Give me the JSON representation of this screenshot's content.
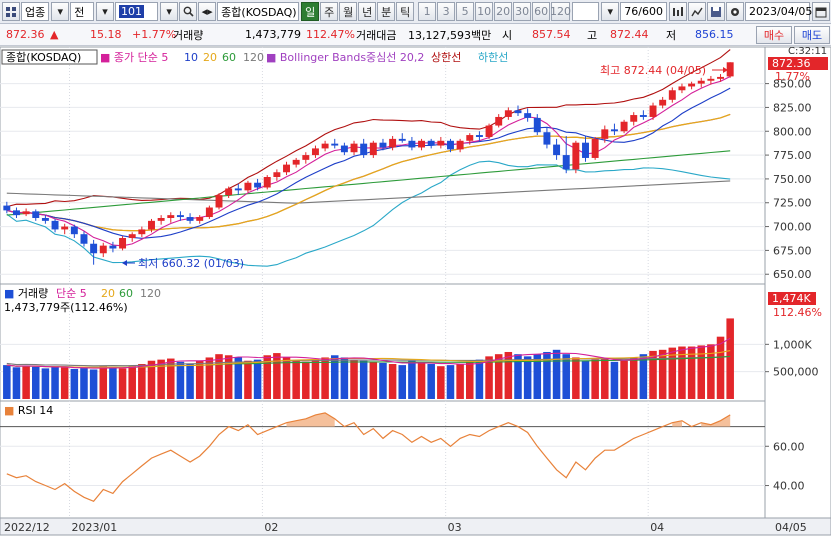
{
  "toolbar": {
    "market": "업종",
    "period": "전",
    "code": "101",
    "index_name": "종합(KOSDAQ)",
    "timeframes": [
      "일",
      "주",
      "월",
      "년",
      "분",
      "틱"
    ],
    "active_timeframe": "일",
    "intervals": [
      "1",
      "3",
      "5",
      "10",
      "20",
      "30",
      "60",
      "120"
    ],
    "count": "76/600",
    "date": "2023/04/05"
  },
  "pricebar": {
    "price": "872.36",
    "arrow": "▲",
    "change": "15.18",
    "change_pct": "+1.77%",
    "volume_label": "거래량",
    "volume": "1,473,779",
    "volume_pct": "112.47%",
    "amount_label": "거래대금",
    "amount": "13,127,593백만",
    "open_label": "시",
    "open": "857.54",
    "high_label": "고",
    "high": "872.44",
    "low_label": "저",
    "low": "856.15",
    "buy_label": "매수",
    "sell_label": "매도"
  },
  "legend": {
    "title": "종합(KOSDAQ)",
    "ma_label": "종가 단순",
    "ma_periods": [
      "5",
      "10",
      "20",
      "60",
      "120"
    ],
    "bb_label": "Bollinger Bands중심선 20,2",
    "bb_upper": "상한선",
    "bb_lower": "하한선",
    "max_text": "최고 872.44 (04/05)",
    "min_text": "최저 660.32 (01/03)",
    "last_price": "872.36",
    "last_pct": "1.77%",
    "top_clock": "C:32:11"
  },
  "volume_panel": {
    "title": "거래량",
    "ma_label": "단순",
    "ma_periods": [
      "5",
      "20",
      "60",
      "120"
    ],
    "info": "1,473,779주(112.46%)",
    "last_label": "1,474K",
    "last_pct": "112.46%"
  },
  "rsi_panel": {
    "title": "RSI 14"
  },
  "price_axis": [
    "872.36",
    "850.00",
    "825.00",
    "800.00",
    "775.00",
    "750.00",
    "725.00",
    "700.00",
    "675.00",
    "650.00"
  ],
  "volume_axis": [
    "1,000K",
    "500,000"
  ],
  "rsi_axis": [
    "60.00",
    "40.00"
  ],
  "date_axis": [
    "2022/12",
    "2023/01",
    "02",
    "03",
    "04",
    "04/05"
  ],
  "colors": {
    "up": "#e3262a",
    "down": "#1e4fd6",
    "ma5": "#d4209a",
    "ma10": "#1e3fc8",
    "ma20": "#e5a81b",
    "ma60": "#2d9b3a",
    "ma120": "#7a7a7a",
    "bb_mid": "#a040c0",
    "bb_upper": "#b01010",
    "bb_lower": "#2aa8c8"
  },
  "chart_data": {
    "type": "candlestick",
    "title": "종합(KOSDAQ)",
    "ylim": [
      645,
      880
    ],
    "candles": [
      [
        722,
        726,
        714,
        717
      ],
      [
        717,
        720,
        709,
        712
      ],
      [
        713,
        719,
        711,
        716
      ],
      [
        716,
        718,
        706,
        709
      ],
      [
        709,
        712,
        703,
        706
      ],
      [
        706,
        708,
        694,
        697
      ],
      [
        697,
        703,
        692,
        700
      ],
      [
        700,
        702,
        688,
        692
      ],
      [
        692,
        695,
        679,
        682
      ],
      [
        682,
        686,
        660,
        672
      ],
      [
        672,
        683,
        668,
        680
      ],
      [
        680,
        684,
        673,
        677
      ],
      [
        677,
        690,
        675,
        688
      ],
      [
        688,
        694,
        684,
        692
      ],
      [
        692,
        700,
        689,
        697
      ],
      [
        697,
        708,
        694,
        706
      ],
      [
        706,
        712,
        702,
        709
      ],
      [
        709,
        715,
        704,
        712
      ],
      [
        712,
        716,
        706,
        710
      ],
      [
        710,
        714,
        703,
        706
      ],
      [
        706,
        712,
        703,
        710
      ],
      [
        710,
        722,
        708,
        720
      ],
      [
        720,
        735,
        718,
        733
      ],
      [
        733,
        742,
        730,
        740
      ],
      [
        740,
        745,
        733,
        738
      ],
      [
        738,
        748,
        736,
        746
      ],
      [
        746,
        750,
        738,
        741
      ],
      [
        741,
        754,
        739,
        752
      ],
      [
        752,
        760,
        748,
        757
      ],
      [
        757,
        768,
        754,
        765
      ],
      [
        765,
        772,
        762,
        770
      ],
      [
        770,
        778,
        766,
        775
      ],
      [
        775,
        785,
        772,
        782
      ],
      [
        782,
        790,
        779,
        787
      ],
      [
        787,
        792,
        782,
        785
      ],
      [
        785,
        788,
        775,
        778
      ],
      [
        778,
        790,
        775,
        787
      ],
      [
        787,
        792,
        772,
        775
      ],
      [
        775,
        790,
        772,
        788
      ],
      [
        788,
        792,
        780,
        783
      ],
      [
        783,
        795,
        780,
        792
      ],
      [
        792,
        798,
        788,
        790
      ],
      [
        790,
        794,
        780,
        783
      ],
      [
        783,
        792,
        780,
        790
      ],
      [
        790,
        792,
        782,
        785
      ],
      [
        785,
        794,
        782,
        790
      ],
      [
        790,
        792,
        778,
        781
      ],
      [
        781,
        792,
        778,
        790
      ],
      [
        790,
        798,
        786,
        796
      ],
      [
        796,
        800,
        790,
        794
      ],
      [
        794,
        808,
        792,
        806
      ],
      [
        806,
        818,
        804,
        815
      ],
      [
        815,
        825,
        812,
        822
      ],
      [
        822,
        827,
        816,
        819
      ],
      [
        819,
        824,
        810,
        814
      ],
      [
        814,
        818,
        796,
        799
      ],
      [
        799,
        804,
        782,
        786
      ],
      [
        786,
        792,
        770,
        775
      ],
      [
        775,
        795,
        756,
        760
      ],
      [
        760,
        790,
        756,
        788
      ],
      [
        788,
        795,
        768,
        772
      ],
      [
        772,
        794,
        770,
        792
      ],
      [
        792,
        806,
        788,
        802
      ],
      [
        802,
        808,
        796,
        800
      ],
      [
        800,
        812,
        798,
        810
      ],
      [
        810,
        820,
        806,
        817
      ],
      [
        817,
        822,
        812,
        815
      ],
      [
        815,
        830,
        812,
        827
      ],
      [
        827,
        836,
        824,
        833
      ],
      [
        833,
        846,
        830,
        843
      ],
      [
        843,
        850,
        840,
        847
      ],
      [
        847,
        852,
        844,
        850
      ],
      [
        850,
        856,
        846,
        853
      ],
      [
        853,
        858,
        849,
        855
      ],
      [
        855,
        860,
        852,
        857
      ],
      [
        857.54,
        872.44,
        856.15,
        872.36
      ]
    ],
    "volume": [
      620,
      580,
      610,
      590,
      560,
      600,
      575,
      550,
      565,
      540,
      600,
      590,
      560,
      600,
      640,
      700,
      720,
      740,
      680,
      650,
      700,
      760,
      820,
      800,
      760,
      700,
      720,
      800,
      840,
      760,
      700,
      680,
      720,
      760,
      800,
      760,
      720,
      700,
      680,
      660,
      640,
      620,
      700,
      680,
      640,
      600,
      620,
      640,
      680,
      720,
      780,
      820,
      860,
      820,
      780,
      820,
      860,
      900,
      820,
      760,
      700,
      720,
      740,
      680,
      700,
      760,
      820,
      880,
      900,
      940,
      960,
      960,
      980,
      1000,
      1140,
      1474
    ],
    "rsi": [
      46,
      44,
      45,
      42,
      40,
      38,
      41,
      37,
      34,
      32,
      38,
      36,
      42,
      46,
      50,
      54,
      56,
      58,
      55,
      52,
      55,
      60,
      66,
      70,
      68,
      71,
      66,
      68,
      70,
      72,
      73,
      74,
      76,
      77,
      74,
      70,
      72,
      66,
      69,
      64,
      68,
      66,
      62,
      65,
      62,
      64,
      60,
      64,
      66,
      65,
      68,
      70,
      72,
      70,
      67,
      60,
      54,
      48,
      44,
      52,
      48,
      54,
      58,
      58,
      61,
      64,
      66,
      68,
      70,
      72,
      73,
      70,
      72,
      71,
      73,
      76
    ],
    "rsi_ylim": [
      25,
      80
    ],
    "x_labels": [
      "2022/12",
      "2023/01",
      "02",
      "03",
      "04"
    ]
  }
}
